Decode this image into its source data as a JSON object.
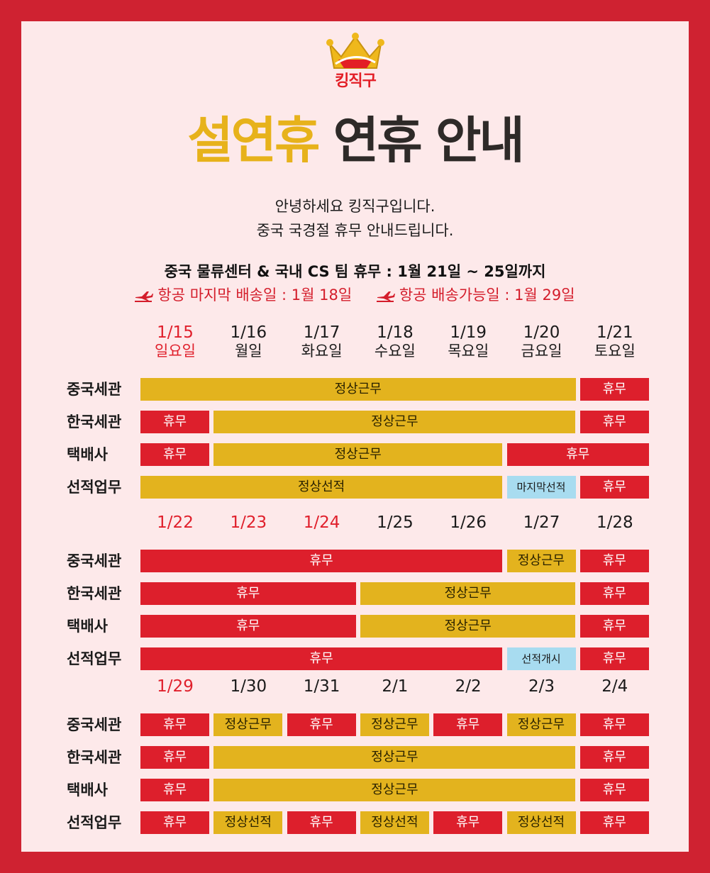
{
  "brand": {
    "name": "킹직구"
  },
  "title": {
    "accent": "설연휴",
    "rest": "연휴 안내"
  },
  "intro": {
    "line1": "안녕하세요 킹직구입니다.",
    "line2": "중국 국경절 휴무 안내드립니다."
  },
  "notice": "중국 물류센터 & 국내 CS 팀 휴무 : 1월 21일 ~ 25일까지",
  "air": {
    "last_shipping": "항공 마지막 배송일 : 1월 18일",
    "available": "항공 배송가능일 : 1월 29일",
    "icon": "airplane-icon"
  },
  "colors": {
    "border": "#cf2231",
    "background": "#fde9ea",
    "holiday": "#dd1f2c",
    "work": "#e3b31e",
    "last": "#a8dcf0",
    "accent": "#e7b21b"
  },
  "row_labels": [
    "중국세관",
    "한국세관",
    "택배사",
    "선적업무"
  ],
  "weeks": [
    {
      "dates": [
        {
          "md": "1/15",
          "dow": "일요일",
          "holiday": true
        },
        {
          "md": "1/16",
          "dow": "월일",
          "holiday": false
        },
        {
          "md": "1/17",
          "dow": "화요일",
          "holiday": false
        },
        {
          "md": "1/18",
          "dow": "수요일",
          "holiday": false
        },
        {
          "md": "1/19",
          "dow": "목요일",
          "holiday": false
        },
        {
          "md": "1/20",
          "dow": "금요일",
          "holiday": false
        },
        {
          "md": "1/21",
          "dow": "토요일",
          "holiday": false
        }
      ],
      "rows": [
        [
          {
            "from": 0,
            "to": 5,
            "label": "정상근무",
            "type": "yellow"
          },
          {
            "from": 6,
            "to": 6,
            "label": "휴무",
            "type": "red"
          }
        ],
        [
          {
            "from": 0,
            "to": 0,
            "label": "휴무",
            "type": "red"
          },
          {
            "from": 1,
            "to": 5,
            "label": "정상근무",
            "type": "yellow"
          },
          {
            "from": 6,
            "to": 6,
            "label": "휴무",
            "type": "red"
          }
        ],
        [
          {
            "from": 0,
            "to": 0,
            "label": "휴무",
            "type": "red"
          },
          {
            "from": 1,
            "to": 4,
            "label": "정상근무",
            "type": "yellow"
          },
          {
            "from": 5,
            "to": 6,
            "label": "휴무",
            "type": "red"
          }
        ],
        [
          {
            "from": 0,
            "to": 4,
            "label": "정상선적",
            "type": "yellow"
          },
          {
            "from": 5,
            "to": 5,
            "label": "마지막선적",
            "type": "blue"
          },
          {
            "from": 6,
            "to": 6,
            "label": "휴무",
            "type": "red"
          }
        ]
      ]
    },
    {
      "dates": [
        {
          "md": "1/22",
          "holiday": true
        },
        {
          "md": "1/23",
          "holiday": true
        },
        {
          "md": "1/24",
          "holiday": true
        },
        {
          "md": "1/25",
          "holiday": false
        },
        {
          "md": "1/26",
          "holiday": false
        },
        {
          "md": "1/27",
          "holiday": false
        },
        {
          "md": "1/28",
          "holiday": false
        }
      ],
      "rows": [
        [
          {
            "from": 0,
            "to": 4,
            "label": "휴무",
            "type": "red"
          },
          {
            "from": 5,
            "to": 5,
            "label": "정상근무",
            "type": "yellow"
          },
          {
            "from": 6,
            "to": 6,
            "label": "휴무",
            "type": "red"
          }
        ],
        [
          {
            "from": 0,
            "to": 2,
            "label": "휴무",
            "type": "red"
          },
          {
            "from": 3,
            "to": 5,
            "label": "정상근무",
            "type": "yellow"
          },
          {
            "from": 6,
            "to": 6,
            "label": "휴무",
            "type": "red"
          }
        ],
        [
          {
            "from": 0,
            "to": 2,
            "label": "휴무",
            "type": "red"
          },
          {
            "from": 3,
            "to": 5,
            "label": "정상근무",
            "type": "yellow"
          },
          {
            "from": 6,
            "to": 6,
            "label": "휴무",
            "type": "red"
          }
        ],
        [
          {
            "from": 0,
            "to": 4,
            "label": "휴무",
            "type": "red"
          },
          {
            "from": 5,
            "to": 5,
            "label": "선적개시",
            "type": "blue"
          },
          {
            "from": 6,
            "to": 6,
            "label": "휴무",
            "type": "red"
          }
        ]
      ]
    },
    {
      "dates": [
        {
          "md": "1/29",
          "holiday": true
        },
        {
          "md": "1/30",
          "holiday": false
        },
        {
          "md": "1/31",
          "holiday": false
        },
        {
          "md": "2/1",
          "holiday": false
        },
        {
          "md": "2/2",
          "holiday": false
        },
        {
          "md": "2/3",
          "holiday": false
        },
        {
          "md": "2/4",
          "holiday": false
        }
      ],
      "rows": [
        [
          {
            "from": 0,
            "to": 0,
            "label": "휴무",
            "type": "red"
          },
          {
            "from": 1,
            "to": 1,
            "label": "정상근무",
            "type": "yellow"
          },
          {
            "from": 2,
            "to": 2,
            "label": "휴무",
            "type": "red"
          },
          {
            "from": 3,
            "to": 3,
            "label": "정상근무",
            "type": "yellow"
          },
          {
            "from": 4,
            "to": 4,
            "label": "휴무",
            "type": "red"
          },
          {
            "from": 5,
            "to": 5,
            "label": "정상근무",
            "type": "yellow"
          },
          {
            "from": 6,
            "to": 6,
            "label": "휴무",
            "type": "red"
          }
        ],
        [
          {
            "from": 0,
            "to": 0,
            "label": "휴무",
            "type": "red"
          },
          {
            "from": 1,
            "to": 5,
            "label": "정상근무",
            "type": "yellow"
          },
          {
            "from": 6,
            "to": 6,
            "label": "휴무",
            "type": "red"
          }
        ],
        [
          {
            "from": 0,
            "to": 0,
            "label": "휴무",
            "type": "red"
          },
          {
            "from": 1,
            "to": 5,
            "label": "정상근무",
            "type": "yellow"
          },
          {
            "from": 6,
            "to": 6,
            "label": "휴무",
            "type": "red"
          }
        ],
        [
          {
            "from": 0,
            "to": 0,
            "label": "휴무",
            "type": "red"
          },
          {
            "from": 1,
            "to": 1,
            "label": "정상선적",
            "type": "yellow"
          },
          {
            "from": 2,
            "to": 2,
            "label": "휴무",
            "type": "red"
          },
          {
            "from": 3,
            "to": 3,
            "label": "정상선적",
            "type": "yellow"
          },
          {
            "from": 4,
            "to": 4,
            "label": "휴무",
            "type": "red"
          },
          {
            "from": 5,
            "to": 5,
            "label": "정상선적",
            "type": "yellow"
          },
          {
            "from": 6,
            "to": 6,
            "label": "휴무",
            "type": "red"
          }
        ]
      ]
    }
  ]
}
